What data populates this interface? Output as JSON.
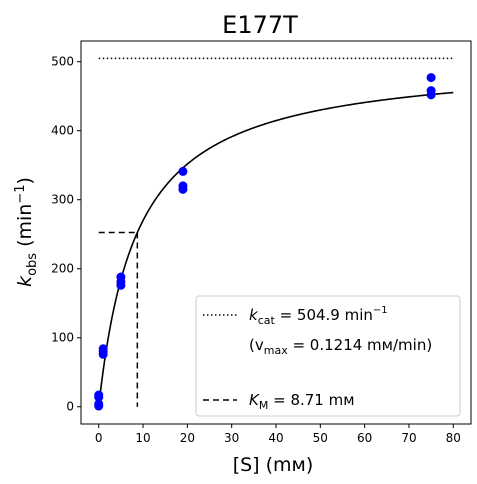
{
  "chart_data": {
    "type": "scatter",
    "title": "E177T",
    "xlabel": "[S] (mᴍ)",
    "ylabel_main": "k",
    "ylabel_sub": "obs",
    "ylabel_unit_pre": " (min",
    "ylabel_unit_sup": "−1",
    "ylabel_unit_post": ")",
    "xlim": [
      -4,
      84
    ],
    "ylim": [
      -25,
      530
    ],
    "xticks": [
      0,
      10,
      20,
      30,
      40,
      50,
      60,
      70,
      80
    ],
    "yticks": [
      0,
      100,
      200,
      300,
      400,
      500
    ],
    "grid": false,
    "legend_position": "lower-right",
    "colors": {
      "points": "#0000ff",
      "lines": "#000000"
    },
    "points": [
      {
        "x": 0,
        "y": 1
      },
      {
        "x": 0,
        "y": 4
      },
      {
        "x": 0,
        "y": 14
      },
      {
        "x": 0,
        "y": 17
      },
      {
        "x": 1,
        "y": 76
      },
      {
        "x": 1,
        "y": 80
      },
      {
        "x": 1,
        "y": 84
      },
      {
        "x": 5,
        "y": 176
      },
      {
        "x": 5,
        "y": 181
      },
      {
        "x": 5,
        "y": 188
      },
      {
        "x": 19,
        "y": 315
      },
      {
        "x": 19,
        "y": 320
      },
      {
        "x": 19,
        "y": 341
      },
      {
        "x": 75,
        "y": 452
      },
      {
        "x": 75,
        "y": 458
      },
      {
        "x": 75,
        "y": 477
      }
    ],
    "fit": {
      "kcat": 504.9,
      "km": 8.71,
      "x_range": [
        0,
        80
      ]
    },
    "legend": {
      "kcat_k": "k",
      "kcat_sub": "cat",
      "kcat_text": " = 504.9 min",
      "kcat_sup": "−1",
      "vmax_open": "(v",
      "vmax_sub": "max",
      "vmax_text": " = 0.1214 mᴍ/min)",
      "km_k": "K",
      "km_sub": "M",
      "km_text": " = 8.71 mᴍ"
    }
  }
}
